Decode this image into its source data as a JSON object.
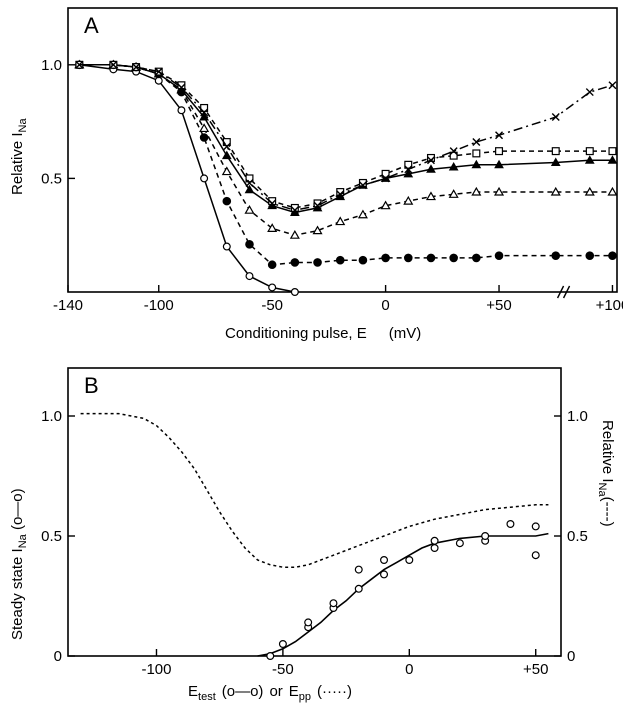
{
  "chart_data": [
    {
      "type": "line",
      "panel_label": "A",
      "ylabel": "Relative",
      "ylabel_sym": "I",
      "ylabel_sub": "Na",
      "xlabel": "Conditioning pulse, E",
      "xlabel_unit": "(mV)",
      "xlim": [
        -140,
        102
      ],
      "ylim": [
        0,
        1.25
      ],
      "x_ticks": [
        -140,
        -100,
        -50,
        0,
        50,
        100
      ],
      "x_tick_labels": [
        "-140",
        "-100",
        "-50",
        "0",
        "+50",
        "+100"
      ],
      "y_ticks": [
        1.0,
        0.5
      ],
      "y_tick_labels": [
        "1.0",
        "0.5"
      ],
      "axis_break_x": 78,
      "series": [
        {
          "marker": "open-circle",
          "line": "solid",
          "x": [
            -135,
            -120,
            -110,
            -100,
            -90,
            -80,
            -70,
            -60,
            -50,
            -40
          ],
          "y": [
            1.0,
            0.98,
            0.97,
            0.93,
            0.8,
            0.5,
            0.2,
            0.07,
            0.02,
            0.0
          ]
        },
        {
          "marker": "filled-circle",
          "line": "dashed",
          "x": [
            -135,
            -120,
            -110,
            -100,
            -90,
            -80,
            -70,
            -60,
            -50,
            -40,
            -30,
            -20,
            -10,
            0,
            10,
            20,
            30,
            40,
            50,
            75,
            90,
            100
          ],
          "y": [
            1.0,
            1.0,
            0.99,
            0.96,
            0.88,
            0.68,
            0.4,
            0.21,
            0.12,
            0.13,
            0.13,
            0.14,
            0.14,
            0.15,
            0.15,
            0.15,
            0.15,
            0.15,
            0.16,
            0.16,
            0.16,
            0.16
          ]
        },
        {
          "marker": "open-triangle",
          "line": "dashed",
          "x": [
            -135,
            -120,
            -110,
            -100,
            -90,
            -80,
            -70,
            -60,
            -50,
            -40,
            -30,
            -20,
            -10,
            0,
            10,
            20,
            30,
            40,
            50,
            75,
            90,
            100
          ],
          "y": [
            1.0,
            1.0,
            0.99,
            0.96,
            0.89,
            0.72,
            0.53,
            0.36,
            0.28,
            0.25,
            0.27,
            0.31,
            0.34,
            0.38,
            0.4,
            0.42,
            0.43,
            0.44,
            0.44,
            0.44,
            0.44,
            0.44
          ]
        },
        {
          "marker": "filled-triangle",
          "line": "solid",
          "x": [
            -135,
            -120,
            -110,
            -100,
            -90,
            -80,
            -70,
            -60,
            -50,
            -40,
            -30,
            -20,
            -10,
            0,
            10,
            20,
            30,
            40,
            50,
            75,
            90,
            100
          ],
          "y": [
            1.0,
            1.0,
            0.99,
            0.96,
            0.89,
            0.77,
            0.6,
            0.45,
            0.38,
            0.35,
            0.37,
            0.42,
            0.47,
            0.5,
            0.52,
            0.54,
            0.55,
            0.56,
            0.56,
            0.57,
            0.58,
            0.58
          ]
        },
        {
          "marker": "open-square",
          "line": "dashed",
          "x": [
            -135,
            -120,
            -110,
            -100,
            -90,
            -80,
            -70,
            -60,
            -50,
            -40,
            -30,
            -20,
            -10,
            0,
            10,
            20,
            30,
            40,
            50,
            75,
            90,
            100
          ],
          "y": [
            1.0,
            1.0,
            0.99,
            0.97,
            0.91,
            0.81,
            0.66,
            0.5,
            0.4,
            0.37,
            0.39,
            0.44,
            0.48,
            0.52,
            0.56,
            0.59,
            0.6,
            0.61,
            0.62,
            0.62,
            0.62,
            0.62
          ]
        },
        {
          "marker": "cross",
          "line": "dash-dot",
          "x": [
            -135,
            -120,
            -110,
            -100,
            -90,
            -80,
            -70,
            -60,
            -50,
            -40,
            -30,
            -20,
            -10,
            0,
            10,
            20,
            30,
            40,
            50,
            75,
            90,
            100
          ],
          "y": [
            1.0,
            1.0,
            0.99,
            0.97,
            0.9,
            0.79,
            0.64,
            0.48,
            0.39,
            0.36,
            0.38,
            0.43,
            0.47,
            0.5,
            0.54,
            0.58,
            0.62,
            0.66,
            0.69,
            0.77,
            0.88,
            0.91
          ]
        }
      ]
    },
    {
      "type": "line",
      "panel_label": "B",
      "ylabel_left": "Steady state",
      "ylabel_left_sym": "I",
      "ylabel_left_sub": "Na",
      "ylabel_left_key": "(o—o)",
      "ylabel_right": "Relative",
      "ylabel_right_sym": "I",
      "ylabel_right_sub": "Na",
      "ylabel_right_key": "(----)",
      "xlabel_parts": {
        "e1": "E",
        "e1_sub": "test",
        "k1": "(o—o)",
        "or": "or",
        "e2": "E",
        "e2_sub": "pp",
        "k2": "(·····)"
      },
      "xlim": [
        -135,
        60
      ],
      "ylim": [
        0,
        1.2
      ],
      "x_ticks": [
        -100,
        -50,
        0,
        50
      ],
      "x_tick_labels": [
        "-100",
        "-50",
        "0",
        "+50"
      ],
      "y_ticks": [
        0,
        0.5,
        1.0
      ],
      "y_tick_labels": [
        "0",
        "0.5",
        "1.0"
      ],
      "y_right_tick_labels": [
        "0",
        "0.5",
        "1.0"
      ],
      "steady_state_points": {
        "x": [
          -55,
          -50,
          -40,
          -40,
          -30,
          -30,
          -20,
          -20,
          -10,
          -10,
          0,
          10,
          10,
          20,
          30,
          30,
          40,
          50,
          50
        ],
        "y": [
          0.0,
          0.05,
          0.12,
          0.14,
          0.2,
          0.22,
          0.28,
          0.36,
          0.34,
          0.4,
          0.4,
          0.45,
          0.48,
          0.47,
          0.48,
          0.5,
          0.55,
          0.54,
          0.42
        ]
      },
      "steady_state_fit": {
        "x": [
          -60,
          -55,
          -50,
          -45,
          -40,
          -35,
          -30,
          -25,
          -20,
          -15,
          -10,
          -5,
          0,
          5,
          10,
          20,
          30,
          40,
          50,
          55
        ],
        "y": [
          0.0,
          0.01,
          0.03,
          0.06,
          0.1,
          0.14,
          0.19,
          0.23,
          0.28,
          0.32,
          0.36,
          0.39,
          0.42,
          0.45,
          0.47,
          0.49,
          0.5,
          0.5,
          0.5,
          0.51
        ]
      },
      "relative_curve": {
        "x": [
          -130,
          -115,
          -105,
          -100,
          -95,
          -90,
          -85,
          -80,
          -75,
          -70,
          -65,
          -60,
          -55,
          -50,
          -45,
          -40,
          -35,
          -30,
          -20,
          -10,
          0,
          10,
          20,
          30,
          40,
          50,
          55
        ],
        "y": [
          1.01,
          1.01,
          0.99,
          0.96,
          0.91,
          0.85,
          0.78,
          0.69,
          0.6,
          0.52,
          0.45,
          0.4,
          0.38,
          0.37,
          0.37,
          0.38,
          0.4,
          0.42,
          0.46,
          0.5,
          0.54,
          0.57,
          0.59,
          0.61,
          0.62,
          0.63,
          0.63
        ]
      }
    }
  ]
}
